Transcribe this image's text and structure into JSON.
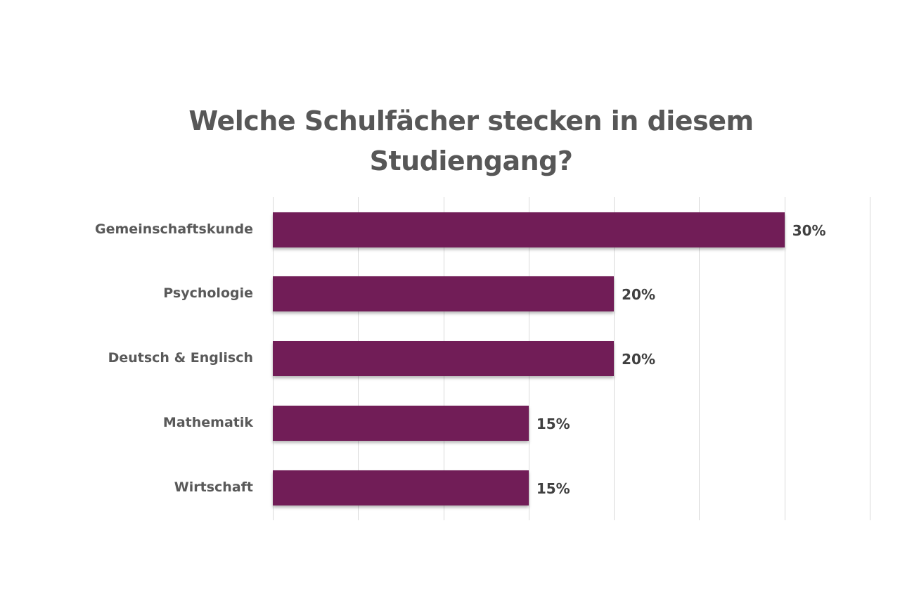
{
  "chart_data": {
    "type": "bar",
    "orientation": "horizontal",
    "title": "Welche Schulfächer stecken in diesem Studiengang?",
    "title_lines": [
      "Welche Schulfächer stecken in diesem",
      "Studiengang?"
    ],
    "categories": [
      "Gemeinschaftskunde",
      "Psychologie",
      "Deutsch & Englisch",
      "Mathematik",
      "Wirtschaft"
    ],
    "values": [
      30,
      20,
      20,
      15,
      15
    ],
    "value_labels": [
      "30%",
      "20%",
      "20%",
      "15%",
      "15%"
    ],
    "unit": "%",
    "xlabel": "",
    "ylabel": "",
    "xlim": [
      0,
      35
    ],
    "grid": {
      "vertical": true,
      "step": 5
    },
    "axis_tick_labels_visible": false,
    "legend": null,
    "bar_color": "#711d57"
  }
}
